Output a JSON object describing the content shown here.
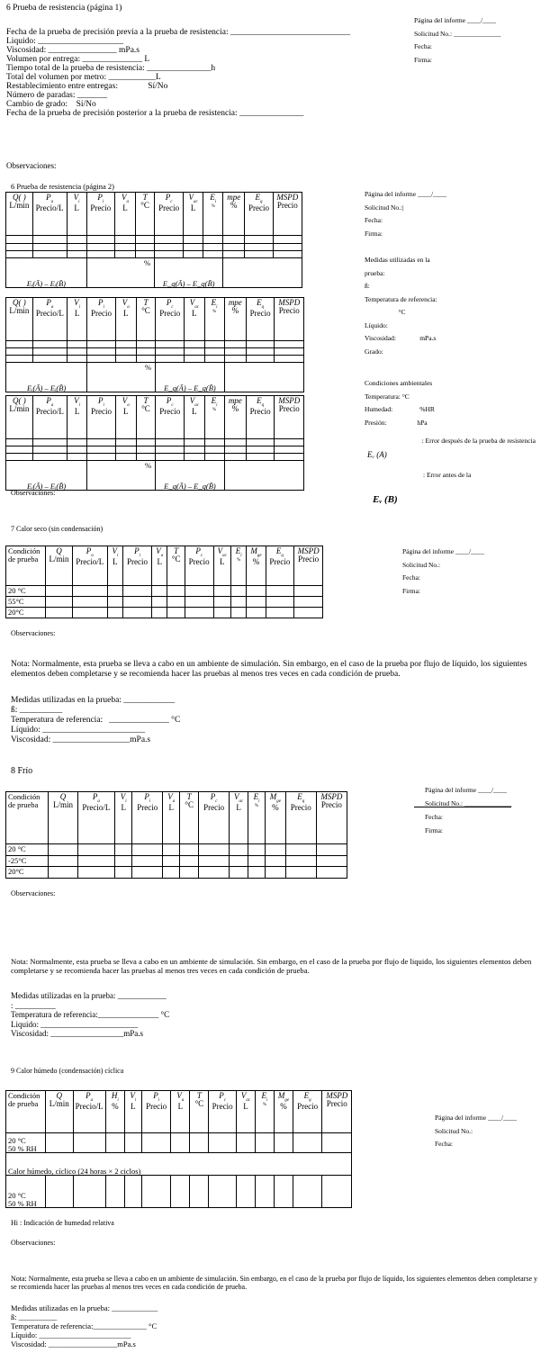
{
  "s6p1": {
    "title": "6 Prueba de resistencia (página 1)",
    "fields": [
      "Fecha de la prueba de precisión previa a la prueba de resistencia: ____________________________",
      "Liquido: ____________________",
      "Viscosidad: ________________ mPa.s",
      "Volumen por entrega: ______________ L",
      "Tiempo total de la prueba de resistencia: _______________h",
      "Total del volumen por metro: ___________L",
      "Restablecimiento entre entregas:              Sí/No",
      "Número de paradas: _______",
      "Cambio de grado:    Sí/No",
      "Fecha de la prueba de precisión posterior a la prueba de resistencia: _______________"
    ],
    "observaciones": "Observaciones:",
    "right": [
      "Página del informe ____/____",
      "Solicitud No.: ______________",
      "Fecha:",
      "Firma:"
    ]
  },
  "s6p2": {
    "title": "6 Prueba de resistencia (página 2)",
    "table": {
      "headers": [
        {
          "sym": "Q( )",
          "sub": "",
          "unit": "L/min"
        },
        {
          "sym": "P",
          "sub": "a",
          "unit": "Precio/L"
        },
        {
          "sym": "V",
          "sub": "i",
          "unit": "L"
        },
        {
          "sym": "P",
          "sub": "i",
          "unit": "Precio"
        },
        {
          "sym": "V",
          "sub": "a",
          "unit": "L"
        },
        {
          "sym": "T",
          "sub": "",
          "unit": "°C"
        },
        {
          "sym": "P",
          "sub": "c",
          "unit": "Precio"
        },
        {
          "sym": "V",
          "sub": "ac",
          "unit": "L"
        },
        {
          "sym": "E",
          "sub": "i",
          "unit": "%"
        },
        {
          "sym": "mpe",
          "sub": "",
          "unit": "%"
        },
        {
          "sym": "E",
          "sub": "q",
          "unit": "Precio"
        },
        {
          "sym": "MSPD",
          "sub": "",
          "unit": "Precio"
        }
      ],
      "summary": {
        "formula1": "Eᵢ(Ā) – Eᵢ(B̄)",
        "percent": "%",
        "formula2": "E_q(Ā) – E_q(B̄)"
      }
    },
    "observaciones": "Observaciones:",
    "right": [
      "Página del informe ____/____",
      "Solicitud No.:|",
      "Fecha:",
      "Firma:",
      "",
      "Medidas utilizadas en la",
      "prueba:",
      "ß:",
      "Temperatura de referencia:",
      "                    °C",
      "Líquido:",
      "Viscosidad:              mPa.s",
      "Grado:",
      "",
      "Condiciones ambientales",
      "Temperatura: °C",
      "Humedad:                %HR",
      "Presión:                  hPa"
    ],
    "error_after": ": Error después de la prueba de resistencia",
    "ev_a": "Eᵥ (A)",
    "error_before": ": Error antes de la",
    "ev_b": "Eᵥ (B)"
  },
  "s7": {
    "title": "7 Calor seco (sin condensación)",
    "table": {
      "headers": [
        {
          "sym": "",
          "sub": "",
          "unit": "Condición de prueba",
          "plain": true
        },
        {
          "sym": "Q",
          "sub": "",
          "unit": "L/min"
        },
        {
          "sym": "P",
          "sub": "a",
          "unit": "Precio/L"
        },
        {
          "sym": "V",
          "sub": "i",
          "unit": "L"
        },
        {
          "sym": "P",
          "sub": "i",
          "unit": "Precio"
        },
        {
          "sym": "V",
          "sub": "a",
          "unit": "L"
        },
        {
          "sym": "T",
          "sub": "",
          "unit": "°C"
        },
        {
          "sym": "P",
          "sub": "c",
          "unit": "Precio"
        },
        {
          "sym": "V",
          "sub": "ac",
          "unit": "L"
        },
        {
          "sym": "E",
          "sub": "i",
          "unit": "%"
        },
        {
          "sym": "M",
          "sub": "ge",
          "unit": "%"
        },
        {
          "sym": "E",
          "sub": "q",
          "unit": "Precio"
        },
        {
          "sym": "MSPD",
          "sub": "",
          "unit": "Precio"
        }
      ],
      "rows": [
        "20 °C",
        "55°C",
        "20°C"
      ]
    },
    "right": [
      "Página del informe ____/____",
      "Solicitud No.:",
      "Fecha:",
      "Firma:"
    ],
    "observaciones": "Observaciones:",
    "nota": "Nota: Normalmente, esta prueba se lleva a cabo en un ambiente de simulación. Sin embargo, en el caso de la prueba por flujo de líquido, los siguientes elementos deben completarse y se recomienda hacer las pruebas al menos tres veces en cada condición de prueba.",
    "fields": [
      "Medidas utilizadas en la prueba: ____________",
      "ß: __________",
      "Temperatura de referencia:   ______________ °C",
      "Líquido: ________________________",
      "Viscosidad: __________________mPa.s"
    ]
  },
  "s8": {
    "title": "8 Frío",
    "table": {
      "rows": [
        "20 °C",
        "-25°C",
        "20°C"
      ]
    },
    "right": [
      "Página del informe ____/____",
      "Solicitud No.: ______________",
      "Fecha:",
      "Firma:"
    ],
    "observaciones": "Observaciones:",
    "nota": "Nota: Normalmente, esta prueba se lleva a cabo en un ambiente de simulación. Sin embargo, en el caso de la prueba por flujo de liquido, los siguientes elementos deben completarse y se recomienda hacer las pruebas al menos tres veces en cada condición de prueba.",
    "fields": [
      "Medidas utilizadas en la prueba: ____________",
      ": __________",
      "Temperatura de referencia:_______________ °C",
      "Liquido: ________________________",
      "Viscosidad: __________________mPa.s"
    ]
  },
  "s9": {
    "title": "9 Calor húmedo (condensación) cíclica",
    "table": {
      "headers": [
        {
          "sym": "",
          "sub": "",
          "unit": "Condición de prueba",
          "plain": true
        },
        {
          "sym": "Q",
          "sub": "",
          "unit": "L/min"
        },
        {
          "sym": "P",
          "sub": "a",
          "unit": "Precio/L"
        },
        {
          "sym": "H",
          "sub": "i",
          "unit": "%"
        },
        {
          "sym": "V",
          "sub": "i",
          "unit": "L"
        },
        {
          "sym": "P",
          "sub": "i",
          "unit": "Precio"
        },
        {
          "sym": "V",
          "sub": "a",
          "unit": "L"
        },
        {
          "sym": "T",
          "sub": "",
          "unit": "°C"
        },
        {
          "sym": "P",
          "sub": "c",
          "unit": "Precio"
        },
        {
          "sym": "V",
          "sub": "ac",
          "unit": "L"
        },
        {
          "sym": "E",
          "sub": "i",
          "unit": "%"
        },
        {
          "sym": "M",
          "sub": "ge",
          "unit": "%"
        },
        {
          "sym": "E",
          "sub": "q",
          "unit": "Precio"
        },
        {
          "sym": "MSPD",
          "sub": "",
          "unit": "Precio"
        }
      ],
      "row1": "20 °C\n50 % RH",
      "span_row": "Calor húmedo, cíclico (24 horas × 2 ciclos)",
      "row2": "20 °C\n50 % RH"
    },
    "right": [
      "Página del informe ____/____",
      "Solicitud No.:",
      "Fecha:"
    ],
    "hi_note": "Hi : Indicación de humedad relativa",
    "observaciones": "Observaciones:",
    "nota": "Nota: Normalmente, esta prueba se lleva a cabo en un ambiente de simulación. Sin embargo, en el caso de la prueba por flujo de líquido, los siguientes elementos deben completarse y se recomienda hacer las pruebas al menos tres veces en cada condición de prueba.",
    "fields": [
      "Medidas utilizadas en la prueba: ____________",
      "ß: __________",
      "Temperatura de referencia:______________ °C",
      "Líquido: ________________________",
      "Viscosidad: __________________mPa.s"
    ]
  }
}
